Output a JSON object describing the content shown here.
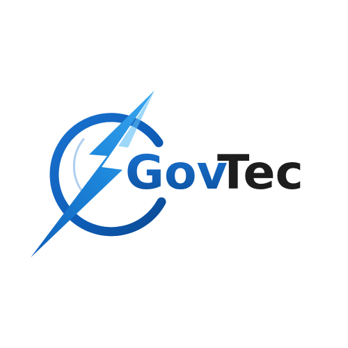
{
  "logo": {
    "name": "GovTec",
    "part_one": "Gov",
    "part_two": "Tec",
    "icon": "lightning-bolt-ring-icon"
  },
  "colors": {
    "background": "#ffffff",
    "brand_blue_dark": "#0b4f9e",
    "brand_blue_mid": "#1565c0",
    "brand_blue_light": "#2a9be8",
    "text_dark": "#1d1d1d"
  }
}
